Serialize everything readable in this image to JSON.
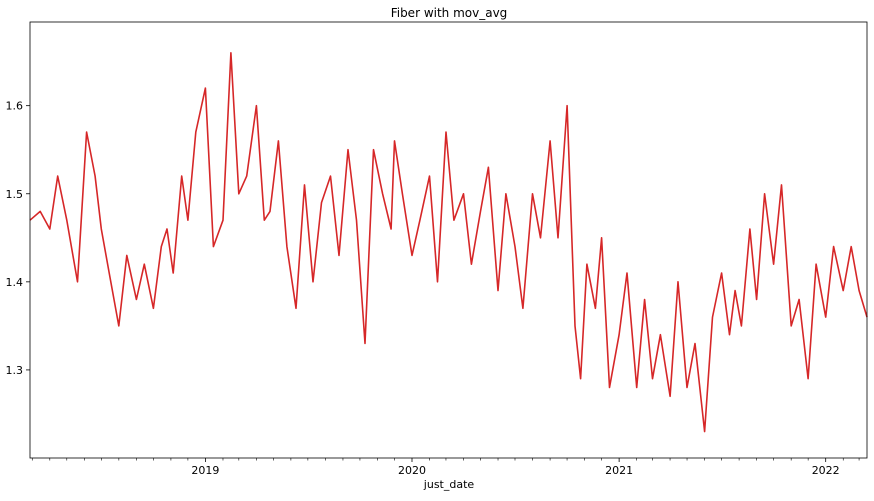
{
  "chart_data": {
    "type": "line",
    "title": "Fiber with mov_avg",
    "xlabel": "just_date",
    "ylabel": "",
    "xlim": [
      "2018-02-25",
      "2022-03-15"
    ],
    "ylim": [
      1.2,
      1.695
    ],
    "x_ticks": [
      {
        "date": "2019-01-01",
        "label": "2019"
      },
      {
        "date": "2020-01-01",
        "label": "2020"
      },
      {
        "date": "2021-01-01",
        "label": "2021"
      },
      {
        "date": "2022-01-01",
        "label": "2022"
      }
    ],
    "y_ticks": [
      1.3,
      1.4,
      1.5,
      1.6
    ],
    "legend": "none",
    "grid": false,
    "series": [
      {
        "color": "#d62728",
        "x": [
          "2018-02-25",
          "2018-03-15",
          "2018-04-01",
          "2018-04-15",
          "2018-05-01",
          "2018-05-20",
          "2018-06-05",
          "2018-06-20",
          "2018-07-01",
          "2018-07-15",
          "2018-08-01",
          "2018-08-15",
          "2018-09-01",
          "2018-09-15",
          "2018-10-01",
          "2018-10-15",
          "2018-10-25",
          "2018-11-05",
          "2018-11-20",
          "2018-12-01",
          "2018-12-15",
          "2019-01-01",
          "2019-01-15",
          "2019-02-01",
          "2019-02-15",
          "2019-03-01",
          "2019-03-15",
          "2019-04-01",
          "2019-04-15",
          "2019-04-25",
          "2019-05-10",
          "2019-05-25",
          "2019-06-10",
          "2019-06-25",
          "2019-07-10",
          "2019-07-25",
          "2019-08-10",
          "2019-08-25",
          "2019-09-10",
          "2019-09-25",
          "2019-10-10",
          "2019-10-25",
          "2019-11-10",
          "2019-11-25",
          "2019-12-01",
          "2019-12-15",
          "2020-01-01",
          "2020-01-15",
          "2020-02-01",
          "2020-02-15",
          "2020-03-01",
          "2020-03-15",
          "2020-04-01",
          "2020-04-15",
          "2020-05-01",
          "2020-05-15",
          "2020-06-01",
          "2020-06-15",
          "2020-07-01",
          "2020-07-15",
          "2020-08-01",
          "2020-08-15",
          "2020-09-01",
          "2020-09-15",
          "2020-10-01",
          "2020-10-15",
          "2020-10-25",
          "2020-11-05",
          "2020-11-20",
          "2020-12-01",
          "2020-12-15",
          "2021-01-01",
          "2021-01-15",
          "2021-02-01",
          "2021-02-15",
          "2021-03-01",
          "2021-03-15",
          "2021-04-01",
          "2021-04-15",
          "2021-05-01",
          "2021-05-15",
          "2021-06-01",
          "2021-06-15",
          "2021-07-01",
          "2021-07-15",
          "2021-07-25",
          "2021-08-05",
          "2021-08-20",
          "2021-09-01",
          "2021-09-15",
          "2021-10-01",
          "2021-10-15",
          "2021-11-01",
          "2021-11-15",
          "2021-12-01",
          "2021-12-15",
          "2022-01-01",
          "2022-01-15",
          "2022-02-01",
          "2022-02-15",
          "2022-03-01",
          "2022-03-15"
        ],
        "y": [
          1.47,
          1.48,
          1.46,
          1.52,
          1.47,
          1.4,
          1.57,
          1.52,
          1.46,
          1.41,
          1.35,
          1.43,
          1.38,
          1.42,
          1.37,
          1.44,
          1.46,
          1.41,
          1.52,
          1.47,
          1.57,
          1.62,
          1.44,
          1.47,
          1.66,
          1.5,
          1.52,
          1.6,
          1.47,
          1.48,
          1.56,
          1.44,
          1.37,
          1.51,
          1.4,
          1.49,
          1.52,
          1.43,
          1.55,
          1.47,
          1.33,
          1.55,
          1.5,
          1.46,
          1.56,
          1.5,
          1.43,
          1.47,
          1.52,
          1.4,
          1.57,
          1.47,
          1.5,
          1.42,
          1.48,
          1.53,
          1.39,
          1.5,
          1.44,
          1.37,
          1.5,
          1.45,
          1.56,
          1.45,
          1.6,
          1.35,
          1.29,
          1.42,
          1.37,
          1.45,
          1.28,
          1.34,
          1.41,
          1.28,
          1.38,
          1.29,
          1.34,
          1.27,
          1.4,
          1.28,
          1.33,
          1.23,
          1.36,
          1.41,
          1.34,
          1.39,
          1.35,
          1.46,
          1.38,
          1.5,
          1.42,
          1.51,
          1.35,
          1.38,
          1.29,
          1.42,
          1.36,
          1.44,
          1.39,
          1.44,
          1.39,
          1.36
        ]
      }
    ]
  }
}
